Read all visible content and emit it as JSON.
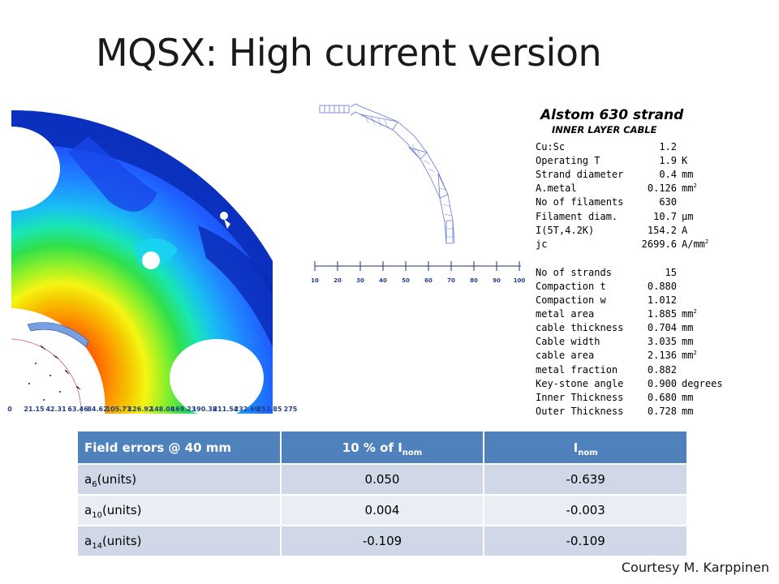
{
  "slide": {
    "title": "MQSX: High current version",
    "credit": "Courtesy M. Karppinen"
  },
  "field_map": {
    "scale_labels": [
      "0",
      "21.15",
      "42.31",
      "63.46",
      "84.62",
      "105.77",
      "126.92",
      "148.08",
      "169.23",
      "190.38",
      "211.54",
      "232.69",
      "253.85",
      "275"
    ],
    "colors": {
      "dark_blue": "#0a2db8",
      "blue": "#1f5cff",
      "cyan": "#19d6f2",
      "green": "#2fe04b",
      "yellow": "#f5f512",
      "orange": "#ff8a00",
      "red": "#ff1a00"
    }
  },
  "coil_plot": {
    "scale_labels": [
      "10",
      "20",
      "30",
      "40",
      "50",
      "60",
      "70",
      "80",
      "90",
      "100"
    ]
  },
  "strand_params": {
    "heading": "Alstom 630 strand",
    "subheading": "INNER LAYER CABLE",
    "rows": [
      {
        "label": "Cu:Sc",
        "value": "1.2",
        "unit": ""
      },
      {
        "label": "Operating T",
        "value": "1.9",
        "unit": "K"
      },
      {
        "label": "Strand diameter",
        "value": "0.4",
        "unit": "mm"
      },
      {
        "label": "A.metal",
        "value": "0.126",
        "unit": "mm",
        "sup": "2"
      },
      {
        "label": "No of filaments",
        "value": "630",
        "unit": ""
      },
      {
        "label": "Filament diam.",
        "value": "10.7",
        "unit": "μm"
      },
      {
        "label": "I(5T,4.2K)",
        "value": "154.2",
        "unit": "A"
      },
      {
        "label": "jc",
        "value": "2699.6",
        "unit": "A/mm",
        "sup": "2"
      },
      {
        "label": "No of strands",
        "value": "15",
        "unit": ""
      },
      {
        "label": "Compaction t",
        "value": "0.880",
        "unit": ""
      },
      {
        "label": "Compaction w",
        "value": "1.012",
        "unit": ""
      },
      {
        "label": "metal area",
        "value": "1.885",
        "unit": "mm",
        "sup": "2"
      },
      {
        "label": "cable thickness",
        "value": "0.704",
        "unit": "mm"
      },
      {
        "label": "Cable width",
        "value": "3.035",
        "unit": "mm"
      },
      {
        "label": "cable area",
        "value": "2.136",
        "unit": "mm",
        "sup": "2"
      },
      {
        "label": "metal fraction",
        "value": "0.882",
        "unit": ""
      },
      {
        "label": "Key-stone angle",
        "value": "0.900",
        "unit": "degrees"
      },
      {
        "label": "Inner Thickness",
        "value": "0.680",
        "unit": "mm"
      },
      {
        "label": "Outer Thickness",
        "value": "0.728",
        "unit": "mm"
      }
    ]
  },
  "field_errors": {
    "header": {
      "col1": "Field errors @ 40 mm",
      "col2_main": "10 % of I",
      "col2_sub": "nom",
      "col3_main": "I",
      "col3_sub": "nom"
    },
    "rows": [
      {
        "name": "a",
        "sub": "6",
        "unit": "(units)",
        "pct10": "0.050",
        "nom": "-0.639"
      },
      {
        "name": "a",
        "sub": "10",
        "unit": "(units)",
        "pct10": "0.004",
        "nom": "-0.003"
      },
      {
        "name": "a",
        "sub": "14",
        "unit": "(units)",
        "pct10": "-0.109",
        "nom": "-0.109"
      }
    ]
  }
}
